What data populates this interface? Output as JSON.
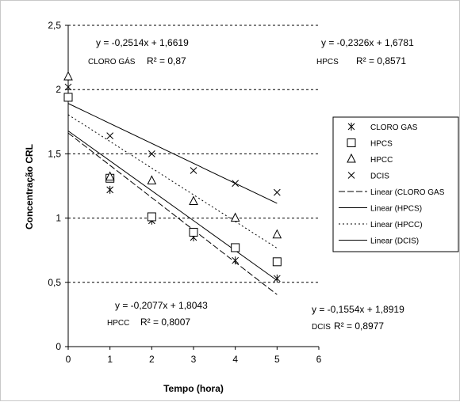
{
  "chart_data": {
    "type": "scatter",
    "xlabel": "Tempo (hora)",
    "ylabel": "Concentração CRL",
    "xlim": [
      0,
      6
    ],
    "ylim": [
      0,
      2.5
    ],
    "x_ticks": [
      "0",
      "1",
      "2",
      "3",
      "4",
      "5",
      "6"
    ],
    "y_ticks": [
      "0",
      "0,5",
      "1",
      "1,5",
      "2",
      "2,5"
    ],
    "grid": "horizontal dashed",
    "legend_position": "right",
    "series": [
      {
        "name": "CLORO GAS",
        "marker": "asterisk",
        "x": [
          0,
          1,
          2,
          3,
          4,
          5
        ],
        "y": [
          2.02,
          1.22,
          0.98,
          0.85,
          0.67,
          0.53
        ]
      },
      {
        "name": "HPCS",
        "marker": "square",
        "x": [
          0,
          1,
          2,
          3,
          4,
          5
        ],
        "y": [
          1.94,
          1.31,
          1.01,
          0.89,
          0.77,
          0.66
        ]
      },
      {
        "name": "HPCC",
        "marker": "triangle",
        "x": [
          0,
          1,
          2,
          3,
          4,
          5
        ],
        "y": [
          2.1,
          1.32,
          1.29,
          1.13,
          1.0,
          0.87
        ]
      },
      {
        "name": "DCIS",
        "marker": "x",
        "x": [
          1,
          2,
          3,
          4,
          5
        ],
        "y": [
          1.64,
          1.5,
          1.37,
          1.27,
          1.2
        ]
      }
    ],
    "trendlines": [
      {
        "name": "Linear (CLORO GAS",
        "style": "dashed",
        "slope": -0.2514,
        "intercept": 1.6619
      },
      {
        "name": "Linear (HPCS)",
        "style": "solid",
        "slope": -0.2326,
        "intercept": 1.6781
      },
      {
        "name": "Linear (HPCC)",
        "style": "dotted",
        "slope": -0.2077,
        "intercept": 1.8043
      },
      {
        "name": "Linear (DCIS)",
        "style": "solid",
        "slope": -0.1554,
        "intercept": 1.8919
      }
    ],
    "annotations": [
      {
        "id": "cloro",
        "eq": "y = -0,2514x + 1,6619",
        "label": "CLORO GÁS",
        "r2": "R² = 0,87"
      },
      {
        "id": "hpcs",
        "eq": "y = -0,2326x + 1,6781",
        "label": "HPCS",
        "r2": "R² = 0,8571"
      },
      {
        "id": "hpcc",
        "eq": "y = -0,2077x + 1,8043",
        "label": "HPCC",
        "r2": "R² = 0,8007"
      },
      {
        "id": "dcis",
        "eq": "y = -0,1554x + 1,8919",
        "label": "DCIS",
        "r2": "R² = 0,8977"
      }
    ]
  }
}
